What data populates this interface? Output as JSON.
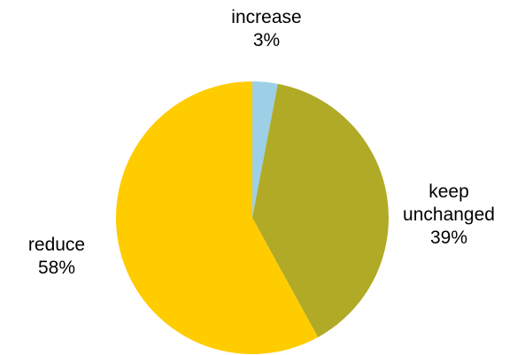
{
  "chart_data": {
    "type": "pie",
    "title": "",
    "start_angle_deg": 0,
    "direction": "clockwise",
    "slices": [
      {
        "label_lines": [
          "increase"
        ],
        "percent_label": "3%",
        "value": 3,
        "color": "#9dd0e6"
      },
      {
        "label_lines": [
          "keep",
          "unchanged"
        ],
        "percent_label": "39%",
        "value": 39,
        "color": "#b0aa26"
      },
      {
        "label_lines": [
          "reduce"
        ],
        "percent_label": "58%",
        "value": 58,
        "color": "#ffcc00"
      }
    ]
  }
}
